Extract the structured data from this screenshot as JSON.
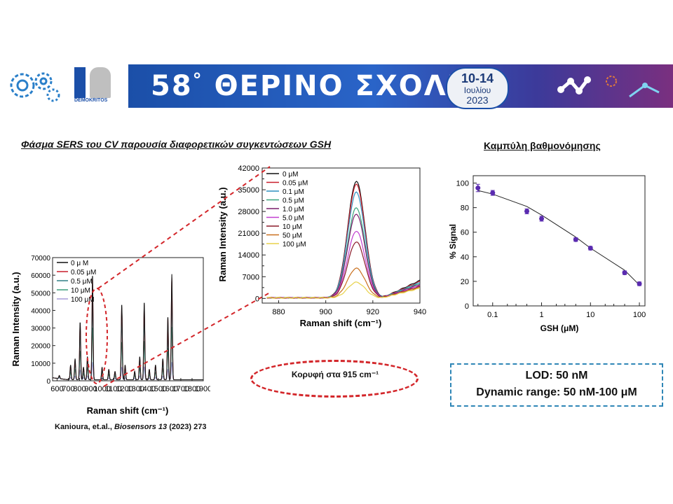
{
  "banner": {
    "title": "58",
    "degree": "°",
    "title_rest": "ΘΕΡΙΝΟ ΣΧΟΛΕΙΟ",
    "date_range": "10-14",
    "month": "Ιουλίου",
    "year": "2023",
    "logo_label": "DEMOKRITOS",
    "colors": {
      "banner_start": "#1b4fa8",
      "banner_end": "#7a2f7f"
    }
  },
  "left_title": "Φάσμα SERS του CV παρουσία διαφορετικών συγκεντώσεων GSH",
  "right_title": "Καμπύλη βαθμονόμησης",
  "peak_note": "Κορυφή στα 915 cm⁻¹",
  "lod": {
    "line1": "LOD: 50 nM",
    "line2": "Dynamic range: 50 nM-100 μM"
  },
  "citation": {
    "prefix": "Kanioura, et.al., ",
    "journal": "Biosensors 13",
    "rest": " (2023) 273"
  },
  "chart_data": [
    {
      "type": "line",
      "id": "full-spectrum",
      "xlabel": "Raman shift (cm⁻¹)",
      "ylabel": "Raman Intensity (a.u.)",
      "xlim": [
        560,
        1900
      ],
      "ylim": [
        0,
        70000
      ],
      "x_ticks": [
        "600",
        "700",
        "800",
        "900",
        "1000",
        "1100",
        "1200",
        "1300",
        "1400",
        "1500",
        "1600",
        "1700",
        "1800",
        "1900"
      ],
      "y_ticks": [
        "0",
        "10000",
        "20000",
        "30000",
        "40000",
        "50000",
        "60000",
        "70000"
      ],
      "legend_position": "top-left",
      "peaks": [
        [
          620,
          3
        ],
        [
          720,
          14
        ],
        [
          760,
          20
        ],
        [
          805,
          55
        ],
        [
          835,
          12
        ],
        [
          870,
          22
        ],
        [
          915,
          100
        ],
        [
          1000,
          12
        ],
        [
          1060,
          10
        ],
        [
          1115,
          8
        ],
        [
          1175,
          72
        ],
        [
          1205,
          14
        ],
        [
          1290,
          8
        ],
        [
          1335,
          22
        ],
        [
          1375,
          74
        ],
        [
          1420,
          10
        ],
        [
          1475,
          14
        ],
        [
          1540,
          20
        ],
        [
          1585,
          60
        ],
        [
          1620,
          100
        ]
      ],
      "series": [
        {
          "name": "0 μ M",
          "color": "#111111",
          "scale": 60000
        },
        {
          "name": "0.05 μM",
          "color": "#c81e2a",
          "scale": 58000
        },
        {
          "name": "0.5 μM",
          "color": "#2f7f86",
          "scale": 46000
        },
        {
          "name": "10 μM",
          "color": "#3a9e7a",
          "scale": 30000
        },
        {
          "name": "100 μM",
          "color": "#a79ad8",
          "scale": 10000
        }
      ]
    },
    {
      "type": "line",
      "id": "zoom-spectrum",
      "xlabel": "Raman shift (cm⁻¹)",
      "ylabel": "Raman Intensity (a.u.)",
      "xlim": [
        873,
        940
      ],
      "ylim": [
        -1500,
        42000
      ],
      "x_ticks": [
        "880",
        "900",
        "920",
        "940"
      ],
      "y_ticks": [
        "0",
        "3500",
        "7000",
        "10500",
        "14000",
        "17500",
        "21000",
        "24500",
        "28000",
        "31500",
        "35000",
        "38500",
        "42000"
      ],
      "y_tick_labels": [
        "0",
        "",
        "7000",
        "",
        "14000",
        "",
        "21000",
        "",
        "28000",
        "",
        "35000",
        "",
        "42000"
      ],
      "legend_position": "top-left",
      "peak_center": 913,
      "series": [
        {
          "name": "0 μM",
          "color": "#111111",
          "peak": 37500
        },
        {
          "name": "0.05 μM",
          "color": "#c81e2a",
          "peak": 36500
        },
        {
          "name": "0.1 μM",
          "color": "#2f8fbf",
          "peak": 34000
        },
        {
          "name": "0.5 μM",
          "color": "#3aa67e",
          "peak": 29000
        },
        {
          "name": "1.0 μM",
          "color": "#7a1f6a",
          "peak": 27000
        },
        {
          "name": "5.0 μM",
          "color": "#c13fd0",
          "peak": 21500
        },
        {
          "name": "10 μM",
          "color": "#8b1a2a",
          "peak": 18000
        },
        {
          "name": "50 μM",
          "color": "#c9701e",
          "peak": 9500
        },
        {
          "name": "100 μM",
          "color": "#e8d24a",
          "peak": 5000
        }
      ]
    },
    {
      "type": "scatter",
      "id": "calibration",
      "xlabel": "GSH (μM)",
      "ylabel": "% Signal",
      "x_scale": "log",
      "xlim": [
        0.04,
        130
      ],
      "ylim": [
        0,
        106
      ],
      "x_ticks": [
        {
          "v": 0.1,
          "l": "0.1"
        },
        {
          "v": 1,
          "l": "1"
        },
        {
          "v": 10,
          "l": "10"
        },
        {
          "v": 100,
          "l": "100"
        }
      ],
      "y_ticks": [
        "0",
        "20",
        "40",
        "60",
        "80",
        "100"
      ],
      "marker_color": "#5a2bb0",
      "x": [
        0.05,
        0.1,
        0.5,
        1,
        5,
        10,
        50,
        100
      ],
      "y": [
        96,
        92,
        77,
        71,
        54,
        47,
        27,
        18
      ],
      "err": [
        3,
        2,
        2,
        2,
        1.5,
        1.5,
        1.5,
        1.5
      ],
      "fit": [
        [
          0.05,
          94
        ],
        [
          0.1,
          91
        ],
        [
          0.5,
          81
        ],
        [
          1,
          74
        ],
        [
          5,
          56
        ],
        [
          10,
          47
        ],
        [
          50,
          29
        ],
        [
          100,
          17
        ]
      ]
    }
  ]
}
